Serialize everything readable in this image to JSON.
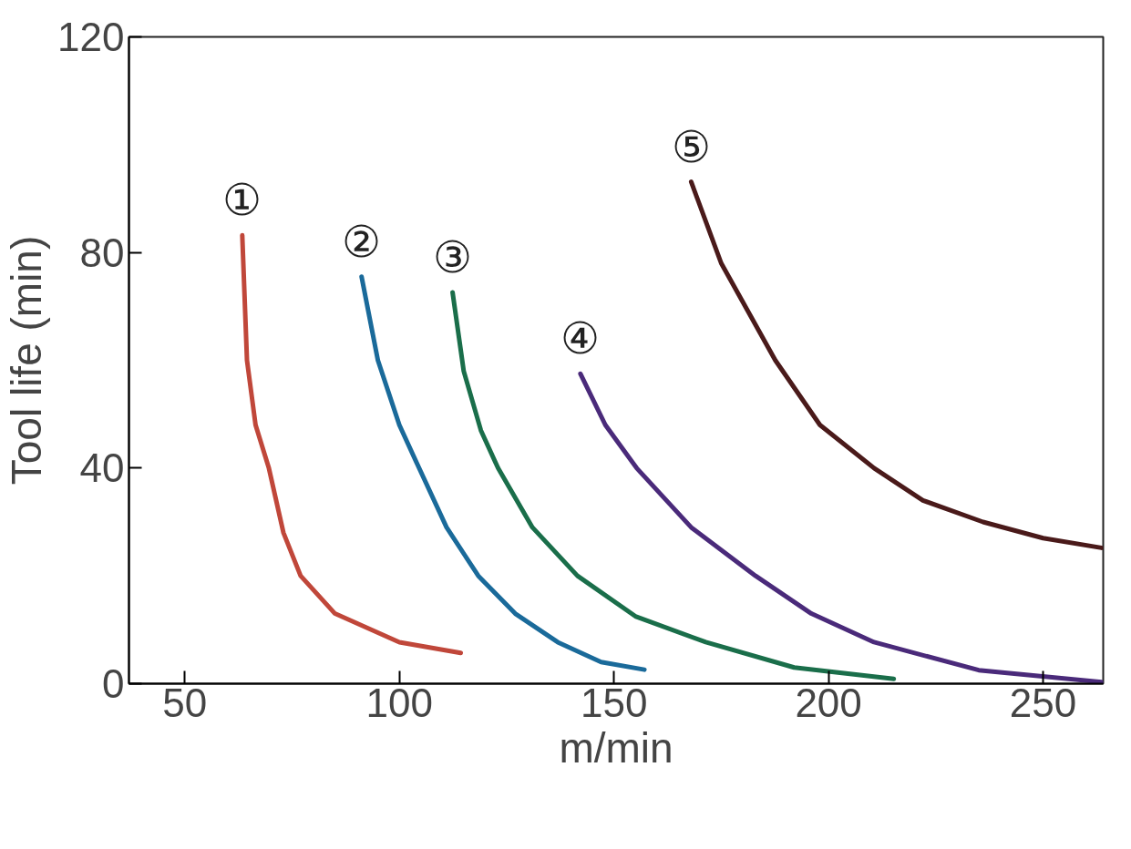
{
  "chart_data": {
    "type": "line",
    "xlabel": "m/min",
    "ylabel": "Tool life (min)",
    "xlim": [
      37,
      264
    ],
    "ylim": [
      0,
      120
    ],
    "xticks": [
      50,
      100,
      150,
      200,
      250
    ],
    "yticks": [
      0,
      40,
      80,
      120
    ],
    "grid": false,
    "marker": "none",
    "line_style": "solid",
    "series": [
      {
        "name": "①",
        "color": "#c0473a",
        "x": [
          63.4,
          64.5,
          66.5,
          69.6,
          73,
          77,
          85,
          100,
          114.3
        ],
        "values": [
          83.2,
          60,
          48,
          40,
          28,
          20,
          13,
          7.7,
          5.7
        ]
      },
      {
        "name": "②",
        "color": "#1a6a9a",
        "x": [
          91.2,
          95,
          100,
          104.6,
          111,
          118.4,
          127,
          136.9,
          147,
          157.1
        ],
        "values": [
          75.5,
          60,
          48,
          40,
          29,
          20,
          13,
          7.7,
          4,
          2.6
        ]
      },
      {
        "name": "③",
        "color": "#1a6e4a",
        "x": [
          112.4,
          115,
          119,
          123,
          131,
          141.5,
          155,
          171.4,
          192,
          215.2
        ],
        "values": [
          72.6,
          58,
          47,
          40,
          29,
          20,
          12.5,
          7.7,
          3,
          0.9
        ]
      },
      {
        "name": "④",
        "color": "#4a2a7a",
        "x": [
          142.2,
          148,
          155.3,
          168,
          183,
          196,
          210.6,
          235,
          263.6
        ],
        "values": [
          57.5,
          48,
          40,
          29,
          20,
          13,
          7.7,
          2.5,
          0.3
        ]
      },
      {
        "name": "⑤",
        "color": "#4a1a1a",
        "x": [
          168,
          175,
          187.6,
          198,
          210.6,
          222,
          236,
          250,
          263.6
        ],
        "values": [
          93.1,
          78,
          60,
          48,
          40,
          34,
          30,
          27,
          25.2
        ]
      }
    ]
  }
}
